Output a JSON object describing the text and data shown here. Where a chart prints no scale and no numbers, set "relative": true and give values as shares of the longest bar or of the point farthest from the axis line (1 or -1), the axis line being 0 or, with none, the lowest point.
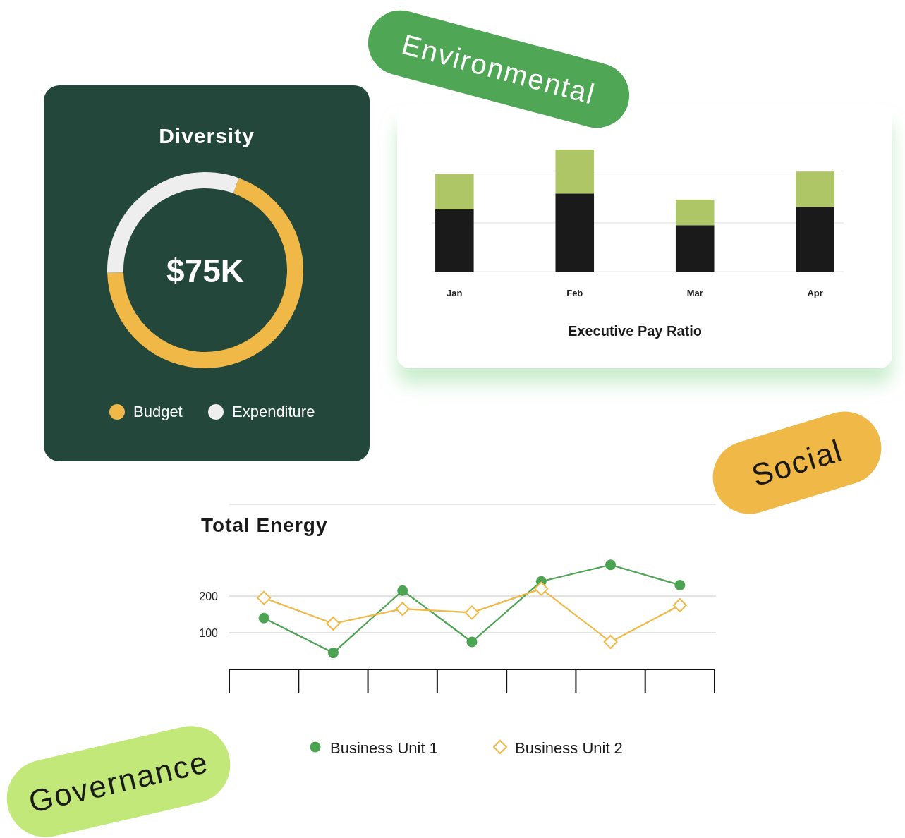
{
  "chart_data": [
    {
      "type": "donut",
      "title": "Diversity",
      "categories": [
        "Budget",
        "Expenditure"
      ],
      "values": [
        69,
        31
      ],
      "colors": [
        "#f0b847",
        "#eeeeee"
      ],
      "annotations": [
        "$75K"
      ],
      "legend": "bottom"
    },
    {
      "type": "bar",
      "title": "Executive Pay Ratio",
      "categories": [
        "Jan",
        "Feb",
        "Mar",
        "Apr"
      ],
      "stacked": true,
      "relative": true,
      "ref_lines": [
        {
          "axis": "y",
          "value": 0.4,
          "color": "#e6e6e6"
        },
        {
          "axis": "y",
          "value": 0.8,
          "color": "#e6e6e6"
        }
      ],
      "series": [
        {
          "color": "#1a1a1a",
          "values": [
            0.51,
            0.64,
            0.38,
            0.53
          ]
        },
        {
          "color": "#aec665",
          "values": [
            0.29,
            0.36,
            0.21,
            0.29
          ]
        }
      ]
    },
    {
      "type": "line",
      "title": "Total Energy",
      "categories": [
        null,
        null,
        null,
        null,
        null,
        null,
        null
      ],
      "ylim": [
        0,
        450
      ],
      "yticks": [
        {
          "value": 100,
          "label": "100"
        },
        {
          "value": 200,
          "label": "200"
        }
      ],
      "grid": "y",
      "legend": "bottom",
      "tick_labels": "y",
      "series": [
        {
          "name": "Business Unit 1",
          "color": "#4ca352",
          "marker": "circle",
          "values": [
            140,
            45,
            215,
            75,
            240,
            285,
            230
          ]
        },
        {
          "name": "Business Unit 2",
          "color": "#f0b847",
          "marker": "diamond",
          "values": [
            195,
            125,
            165,
            155,
            220,
            75,
            175
          ]
        }
      ]
    },
    {
      "type": "other",
      "annotations": [
        "Environmental",
        "Social",
        "Governance"
      ],
      "colors": [
        "#4fa655",
        "#f0b847",
        "#c3e87a"
      ]
    }
  ]
}
